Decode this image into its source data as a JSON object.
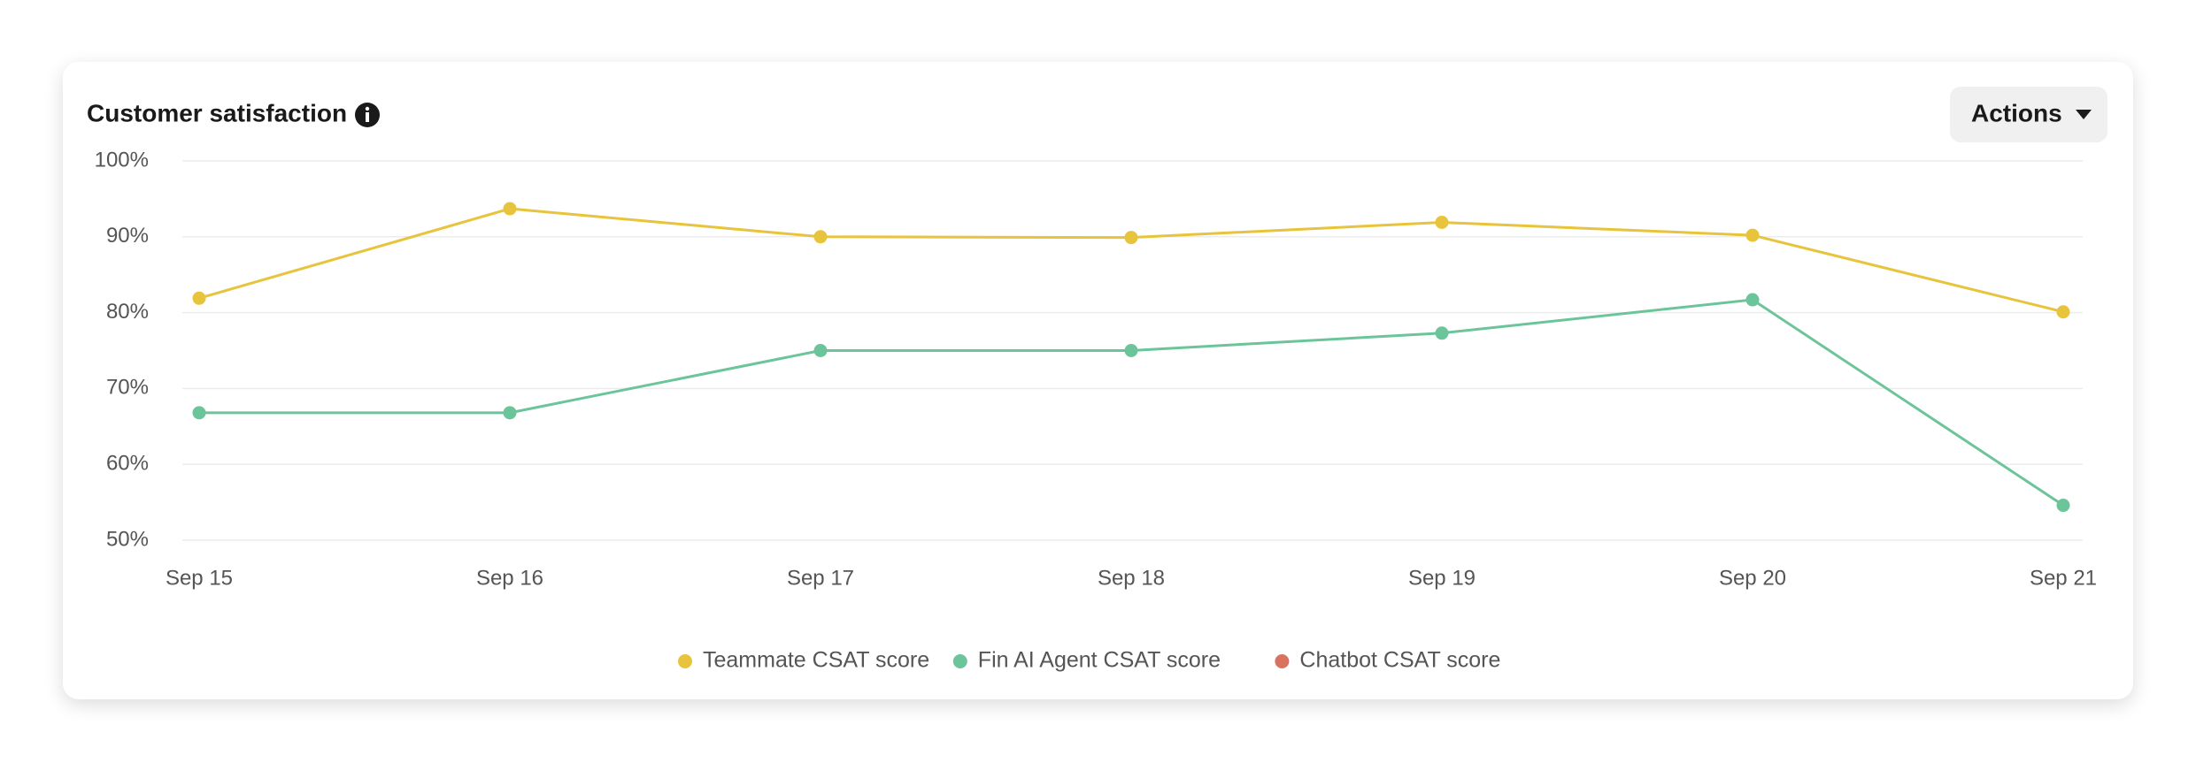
{
  "header": {
    "title": "Customer satisfaction",
    "action": "Actions"
  },
  "chart_data": {
    "type": "line",
    "categories": [
      "Sep 15",
      "Sep 16",
      "Sep 17",
      "Sep 18",
      "Sep 19",
      "Sep 20",
      "Sep 21"
    ],
    "series": [
      {
        "name": "Teammate CSAT score",
        "color": "#e8c43c",
        "values": [
          81.9,
          93.7,
          90.0,
          89.9,
          91.9,
          90.2,
          80.1
        ]
      },
      {
        "name": "Fin AI Agent CSAT score",
        "color": "#6cc59a",
        "values": [
          66.8,
          66.8,
          75.0,
          75.0,
          77.3,
          81.7,
          54.6
        ]
      },
      {
        "name": "Chatbot CSAT score",
        "color": "#d9735f",
        "values": [
          null,
          null,
          null,
          null,
          null,
          null,
          null
        ]
      }
    ],
    "ylim": [
      50,
      100
    ],
    "yticks": [
      {
        "value": 50,
        "label": "50%"
      },
      {
        "value": 60,
        "label": "60%"
      },
      {
        "value": 70,
        "label": "70%"
      },
      {
        "value": 80,
        "label": "80%"
      },
      {
        "value": 90,
        "label": "90%"
      },
      {
        "value": 100,
        "label": "100%"
      }
    ],
    "grid": true,
    "legend": "bottom"
  }
}
